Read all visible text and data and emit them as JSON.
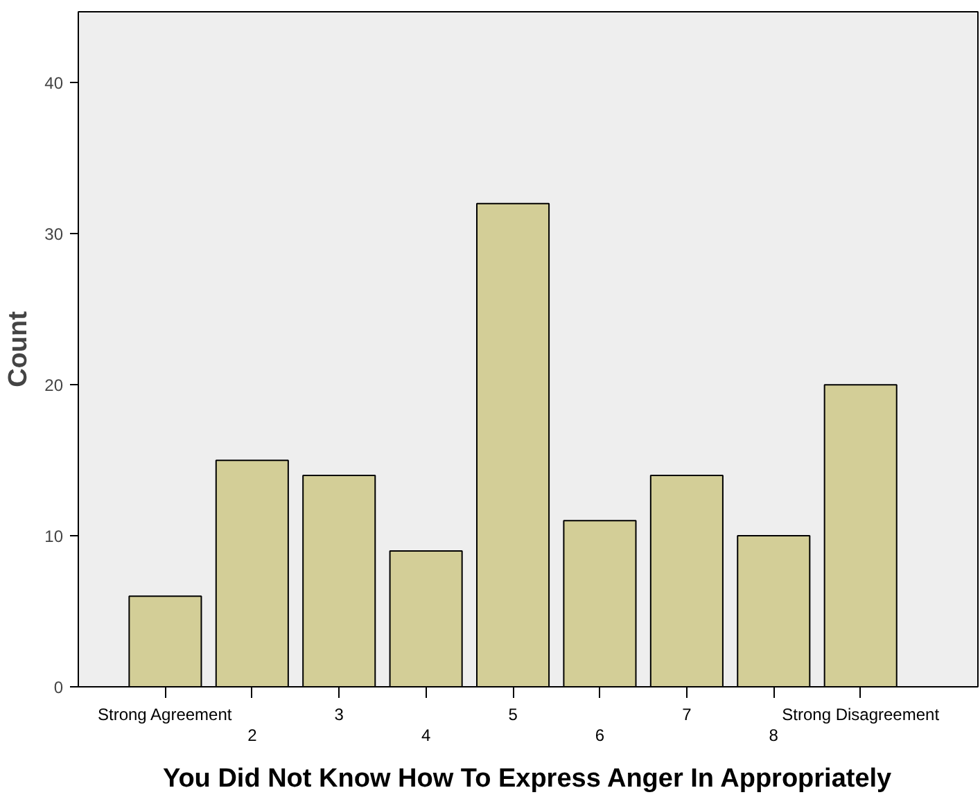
{
  "chart_data": {
    "type": "bar",
    "xlabel": "You Did Not Know How To Express Anger In Appropriately",
    "ylabel": "Count",
    "categories": [
      "Strong Agreement",
      "2",
      "3",
      "4",
      "5",
      "6",
      "7",
      "8",
      "Strong Disagreement"
    ],
    "values": [
      6,
      15,
      14,
      9,
      32,
      11,
      14,
      10,
      20
    ],
    "color": "#d3ce97",
    "ylim": [
      0,
      44.7
    ],
    "yticks": [
      0,
      10,
      20,
      30,
      40
    ]
  }
}
